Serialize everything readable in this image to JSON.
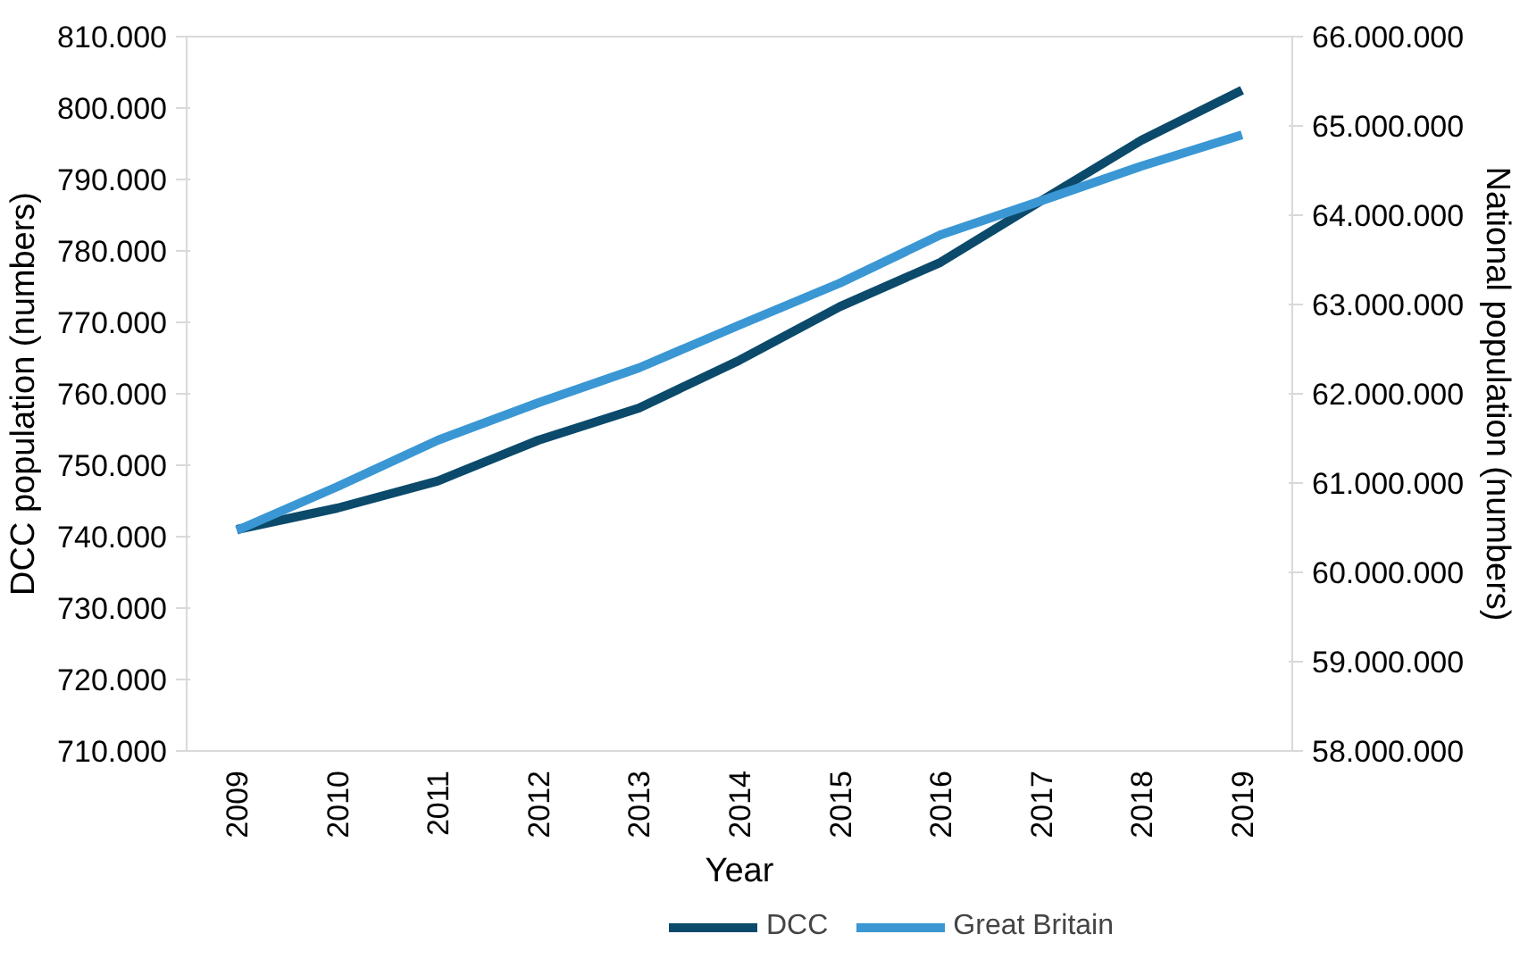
{
  "chart_data": {
    "type": "line",
    "xlabel": "Year",
    "ylabel": "DCC population (numbers)",
    "y2label": "National population (numbers)",
    "categories": [
      "2009",
      "2010",
      "2011",
      "2012",
      "2013",
      "2014",
      "2015",
      "2016",
      "2017",
      "2018",
      "2019"
    ],
    "series": [
      {
        "name": "DCC",
        "color": "#0b4a6b",
        "values": [
          741000,
          744000,
          747800,
          753500,
          758000,
          764700,
          772200,
          778400,
          787000,
          795500,
          802500
        ]
      },
      {
        "name": "Great Britain",
        "color": "#3a97d4",
        "axis": "y2",
        "values": [
          60470000,
          60960000,
          61480000,
          61900000,
          62290000,
          62770000,
          63240000,
          63780000,
          64160000,
          64550000,
          64900000
        ]
      }
    ],
    "ylim": [
      710000,
      810000
    ],
    "yticks": [
      {
        "value": 710000,
        "label": "710.000"
      },
      {
        "value": 720000,
        "label": "720.000"
      },
      {
        "value": 730000,
        "label": "730.000"
      },
      {
        "value": 740000,
        "label": "740.000"
      },
      {
        "value": 750000,
        "label": "750.000"
      },
      {
        "value": 760000,
        "label": "760.000"
      },
      {
        "value": 770000,
        "label": "770.000"
      },
      {
        "value": 780000,
        "label": "780.000"
      },
      {
        "value": 790000,
        "label": "790.000"
      },
      {
        "value": 800000,
        "label": "800.000"
      },
      {
        "value": 810000,
        "label": "810.000"
      }
    ],
    "y2lim": [
      58000000,
      66000000
    ],
    "y2ticks": [
      {
        "value": 58000000,
        "label": "58.000.000"
      },
      {
        "value": 59000000,
        "label": "59.000.000"
      },
      {
        "value": 60000000,
        "label": "60.000.000"
      },
      {
        "value": 61000000,
        "label": "61.000.000"
      },
      {
        "value": 62000000,
        "label": "62.000.000"
      },
      {
        "value": 63000000,
        "label": "63.000.000"
      },
      {
        "value": 64000000,
        "label": "64.000.000"
      },
      {
        "value": 65000000,
        "label": "65.000.000"
      },
      {
        "value": 66000000,
        "label": "66.000.000"
      }
    ],
    "grid": false,
    "legend": "bottom",
    "marker": "none",
    "line_style": "solid"
  }
}
